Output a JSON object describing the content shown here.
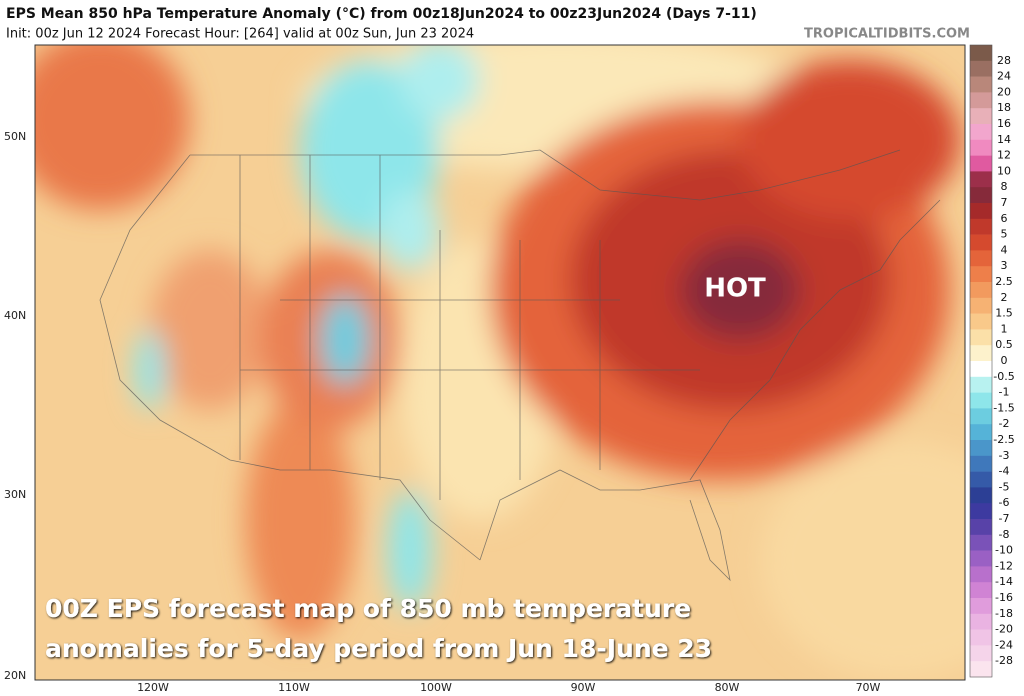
{
  "header": {
    "title": "EPS Mean 850 hPa Temperature Anomaly (°C) from 00z18Jun2024 to 00z23Jun2024 (Days 7-11)",
    "subtitle": "Init: 00z Jun 12 2024   Forecast Hour: [264]   valid at 00z Sun, Jun 23 2024",
    "credit": "TROPICALTIDBITS.COM"
  },
  "map": {
    "lat_labels": [
      "50N",
      "40N",
      "30N",
      "20N"
    ],
    "lon_labels": [
      "120W",
      "110W",
      "100W",
      "90W",
      "80W",
      "70W"
    ],
    "annotation": "HOT",
    "caption": [
      "00Z EPS forecast map of 850 mb temperature",
      "anomalies for 5-day period from Jun 18-June 23"
    ]
  },
  "colorbar": {
    "labels": [
      28,
      24,
      20,
      18,
      16,
      14,
      12,
      10,
      8,
      7,
      6,
      5,
      4,
      3,
      2.5,
      2,
      1.5,
      1,
      0.5,
      0,
      -0.5,
      -1,
      -1.5,
      -2,
      -2.5,
      -3,
      -4,
      -5,
      -6,
      -7,
      -8,
      -10,
      -12,
      -14,
      -16,
      -18,
      -20,
      -24,
      -28
    ],
    "colors": [
      "#7b5a4a",
      "#9a6f62",
      "#b9877a",
      "#d49a99",
      "#e8b0b8",
      "#f2a6cd",
      "#f08ac0",
      "#e05aa0",
      "#9c2f4a",
      "#862a3a",
      "#a52a2a",
      "#c0392b",
      "#d54a2e",
      "#e4643a",
      "#ee7f4a",
      "#f29a5e",
      "#f6b273",
      "#f9c98a",
      "#fbe0a8",
      "#fdf2cc",
      "#ffffff",
      "#b8f2f0",
      "#8ee6ea",
      "#6ccde0",
      "#55b3d8",
      "#4a96ca",
      "#3f78bb",
      "#355aa8",
      "#2c3f95",
      "#3d3aa0",
      "#5842a8",
      "#7a52b8",
      "#9a60c4",
      "#b870cc",
      "#d083d4",
      "#e09cdc",
      "#eab3e2",
      "#f0c4e6",
      "#f5d4ea",
      "#fbe4ee"
    ]
  }
}
